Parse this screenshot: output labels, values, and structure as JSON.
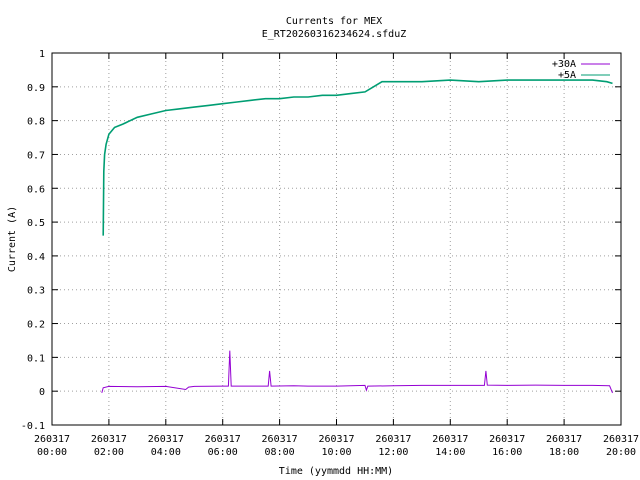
{
  "chart_data": {
    "type": "line",
    "title": "Currents for MEX",
    "subtitle": "E_RT20260316234624.sfduZ",
    "xlabel": "Time (yymmdd HH:MM)",
    "ylabel": "Current (A)",
    "xlim": [
      0,
      20
    ],
    "ylim": [
      -0.1,
      1
    ],
    "grid": true,
    "legend_position": "top-right",
    "yticks": [
      "-0.1",
      "0",
      "0.1",
      "0.2",
      "0.3",
      "0.4",
      "0.5",
      "0.6",
      "0.7",
      "0.8",
      "0.9",
      "1"
    ],
    "xticks": [
      {
        "hours": 0,
        "date": "260317",
        "time": "00:00"
      },
      {
        "hours": 2,
        "date": "260317",
        "time": "02:00"
      },
      {
        "hours": 4,
        "date": "260317",
        "time": "04:00"
      },
      {
        "hours": 6,
        "date": "260317",
        "time": "06:00"
      },
      {
        "hours": 8,
        "date": "260317",
        "time": "08:00"
      },
      {
        "hours": 10,
        "date": "260317",
        "time": "10:00"
      },
      {
        "hours": 12,
        "date": "260317",
        "time": "12:00"
      },
      {
        "hours": 14,
        "date": "260317",
        "time": "14:00"
      },
      {
        "hours": 16,
        "date": "260317",
        "time": "16:00"
      },
      {
        "hours": 18,
        "date": "260317",
        "time": "18:00"
      },
      {
        "hours": 20,
        "date": "260317",
        "time": "20:00"
      }
    ],
    "series": [
      {
        "name": "+30A",
        "color": "#9400d3",
        "x": [
          1.75,
          1.8,
          2.0,
          3.0,
          4.0,
          4.7,
          4.8,
          5.0,
          6.0,
          6.2,
          6.25,
          6.3,
          7.0,
          7.6,
          7.65,
          7.7,
          8.5,
          9.0,
          10.0,
          10.5,
          11.0,
          11.05,
          11.1,
          12.0,
          13.0,
          14.0,
          15.0,
          15.2,
          15.25,
          15.3,
          16.0,
          17.0,
          18.0,
          19.0,
          19.6,
          19.7
        ],
        "values": [
          -0.005,
          0.01,
          0.014,
          0.013,
          0.014,
          0.005,
          0.012,
          0.014,
          0.015,
          0.015,
          0.12,
          0.015,
          0.015,
          0.015,
          0.06,
          0.015,
          0.016,
          0.015,
          0.015,
          0.016,
          0.017,
          0.003,
          0.015,
          0.016,
          0.017,
          0.017,
          0.017,
          0.017,
          0.06,
          0.018,
          0.017,
          0.018,
          0.017,
          0.017,
          0.016,
          -0.005
        ]
      },
      {
        "name": "+5A",
        "color": "#009e73",
        "x": [
          1.8,
          1.82,
          1.85,
          1.9,
          2.0,
          2.2,
          2.5,
          3.0,
          3.5,
          4.0,
          4.5,
          5.0,
          5.5,
          6.0,
          6.5,
          7.0,
          7.5,
          8.0,
          8.5,
          9.0,
          9.5,
          10.0,
          10.5,
          11.0,
          11.3,
          11.6,
          12.0,
          13.0,
          14.0,
          15.0,
          16.0,
          17.0,
          18.0,
          19.0,
          19.5,
          19.7
        ],
        "values": [
          0.46,
          0.65,
          0.7,
          0.73,
          0.76,
          0.78,
          0.79,
          0.81,
          0.82,
          0.83,
          0.835,
          0.84,
          0.845,
          0.85,
          0.855,
          0.86,
          0.865,
          0.865,
          0.87,
          0.87,
          0.875,
          0.875,
          0.88,
          0.885,
          0.9,
          0.915,
          0.915,
          0.915,
          0.92,
          0.915,
          0.92,
          0.92,
          0.92,
          0.92,
          0.915,
          0.91
        ]
      }
    ]
  }
}
